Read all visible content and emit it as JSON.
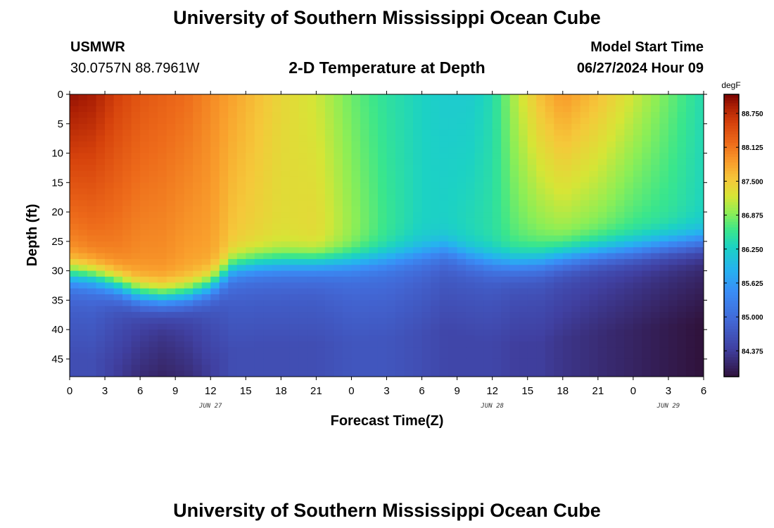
{
  "page": {
    "title_top": "University of Southern Mississippi Ocean Cube",
    "title_bottom": "University of Southern Mississippi Ocean Cube",
    "station": "USMWR",
    "coords": "30.0757N  88.7961W",
    "model_start_label": "Model Start Time",
    "model_start_value": "06/27/2024 Hour 09"
  },
  "chart_data": {
    "type": "heatmap",
    "title": "2-D Temperature at Depth",
    "xlabel": "Forecast Time(Z)",
    "ylabel": "Depth (ft)",
    "x_range": [
      0,
      54
    ],
    "y_range": [
      0,
      48
    ],
    "y_inverted": true,
    "x_ticks": [
      0,
      3,
      6,
      9,
      12,
      15,
      18,
      21,
      24,
      27,
      30,
      33,
      36,
      39,
      42,
      45,
      48,
      51,
      54
    ],
    "x_tick_labels": [
      "0",
      "3",
      "6",
      "9",
      "12",
      "15",
      "18",
      "21",
      "0",
      "3",
      "6",
      "9",
      "12",
      "15",
      "18",
      "21",
      "0",
      "3",
      "6"
    ],
    "y_ticks": [
      0,
      5,
      10,
      15,
      20,
      25,
      30,
      35,
      40,
      45
    ],
    "y_tick_labels": [
      "0",
      "5",
      "10",
      "15",
      "20",
      "25",
      "30",
      "35",
      "40",
      "45"
    ],
    "date_labels": [
      {
        "x": 12,
        "text": "JUN 27"
      },
      {
        "x": 36,
        "text": "JUN 28"
      },
      {
        "x": 51,
        "text": "JUN 29"
      }
    ],
    "colorbar": {
      "unit": "degF",
      "min": 83.9,
      "max": 89.1,
      "ticks": [
        84.375,
        85.0,
        85.625,
        86.25,
        86.875,
        87.5,
        88.125,
        88.75
      ],
      "tick_labels": [
        "84.375",
        "85.000",
        "85.625",
        "86.250",
        "86.875",
        "87.500",
        "88.125",
        "88.750"
      ]
    },
    "columns": [
      {
        "t": 0,
        "s": 89.0,
        "b": 87.9,
        "th": 30.5,
        "bt": 84.6
      },
      {
        "t": 2,
        "s": 88.9,
        "b": 88.0,
        "th": 31.0,
        "bt": 84.6
      },
      {
        "t": 4,
        "s": 88.6,
        "b": 88.0,
        "th": 32.3,
        "bt": 84.4
      },
      {
        "t": 6,
        "s": 88.4,
        "b": 87.9,
        "th": 34.0,
        "bt": 84.2
      },
      {
        "t": 8,
        "s": 88.3,
        "b": 87.9,
        "th": 34.5,
        "bt": 84.1
      },
      {
        "t": 10,
        "s": 88.2,
        "b": 87.8,
        "th": 34.0,
        "bt": 84.2
      },
      {
        "t": 12,
        "s": 88.0,
        "b": 87.8,
        "th": 32.5,
        "bt": 84.4
      },
      {
        "t": 14,
        "s": 87.8,
        "b": 87.5,
        "th": 29.3,
        "bt": 84.6
      },
      {
        "t": 16,
        "s": 87.6,
        "b": 87.4,
        "th": 28.8,
        "bt": 84.6
      },
      {
        "t": 18,
        "s": 87.4,
        "b": 87.3,
        "th": 28.6,
        "bt": 84.6
      },
      {
        "t": 21,
        "s": 87.2,
        "b": 87.4,
        "th": 28.5,
        "bt": 84.6
      },
      {
        "t": 24,
        "s": 86.8,
        "b": 87.0,
        "th": 28.3,
        "bt": 84.7
      },
      {
        "t": 27,
        "s": 86.5,
        "b": 86.6,
        "th": 27.8,
        "bt": 84.7
      },
      {
        "t": 30,
        "s": 86.3,
        "b": 86.3,
        "th": 27.0,
        "bt": 84.6
      },
      {
        "t": 32,
        "s": 86.2,
        "b": 86.3,
        "th": 26.3,
        "bt": 84.5
      },
      {
        "t": 34,
        "s": 86.2,
        "b": 86.4,
        "th": 27.5,
        "bt": 84.5
      },
      {
        "t": 36,
        "s": 86.4,
        "b": 86.5,
        "th": 28.3,
        "bt": 84.5
      },
      {
        "t": 38,
        "s": 87.1,
        "b": 86.7,
        "th": 28.6,
        "bt": 84.4
      },
      {
        "t": 40,
        "s": 87.6,
        "b": 86.8,
        "th": 28.3,
        "bt": 84.4
      },
      {
        "t": 42,
        "s": 87.9,
        "b": 86.9,
        "th": 27.6,
        "bt": 84.3
      },
      {
        "t": 45,
        "s": 87.6,
        "b": 86.8,
        "th": 26.8,
        "bt": 84.2
      },
      {
        "t": 48,
        "s": 87.2,
        "b": 86.6,
        "th": 26.3,
        "bt": 84.1
      },
      {
        "t": 51,
        "s": 86.8,
        "b": 86.5,
        "th": 25.5,
        "bt": 84.0
      },
      {
        "t": 54,
        "s": 86.4,
        "b": 86.3,
        "th": 25.0,
        "bt": 83.9
      }
    ]
  }
}
